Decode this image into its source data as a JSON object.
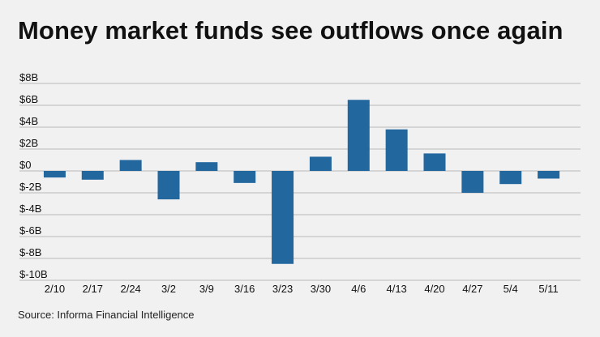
{
  "header": {
    "title": "Money market funds see outflows once again"
  },
  "footer": {
    "source": "Source: Informa Financial Intelligence"
  },
  "colors": {
    "background": "#f1f1f1",
    "bar": "#23679f",
    "gridline": "#b9b9b9",
    "text": "#111111"
  },
  "chart_data": {
    "type": "bar",
    "title": "Money market funds see outflows once again",
    "xlabel": "",
    "ylabel": "",
    "grid": true,
    "legend": "none",
    "categories": [
      "2/10",
      "2/17",
      "2/24",
      "3/2",
      "3/9",
      "3/16",
      "3/23",
      "3/30",
      "4/6",
      "4/13",
      "4/20",
      "4/27",
      "5/4",
      "5/11"
    ],
    "values": [
      -0.6,
      -0.8,
      1.0,
      -2.6,
      0.8,
      -1.1,
      -8.5,
      1.3,
      6.5,
      3.8,
      1.6,
      -2.0,
      -1.2,
      -0.7
    ],
    "ylim": [
      -10,
      8
    ],
    "yticks": [
      8,
      6,
      4,
      2,
      0,
      -2,
      -4,
      -6,
      -8,
      -10
    ],
    "ytick_labels": [
      "$8B",
      "$6B",
      "$4B",
      "$2B",
      "$0",
      "$-2B",
      "$-4B",
      "$-6B",
      "$-8B",
      "$-10B"
    ]
  }
}
